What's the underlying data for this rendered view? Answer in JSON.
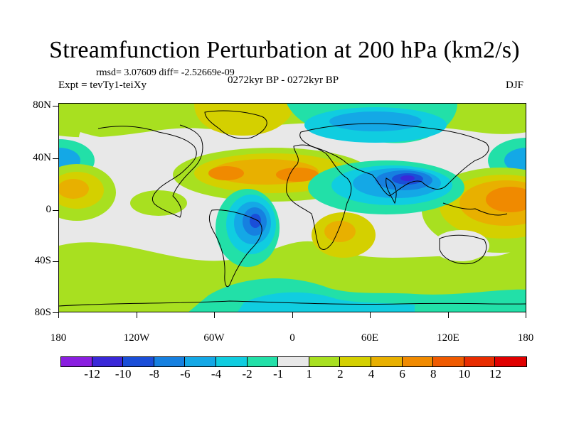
{
  "figure": {
    "title": "Streamfunction Perturbation at 200 hPa (km2/s)",
    "stats": "rmsd= 3.07609 diff= -2.52669e-09",
    "experiment": "Expt = tevTy1-teiXy",
    "period": "0272kyr BP - 0272kyr BP",
    "season": "DJF"
  },
  "axes": {
    "y_labels": [
      "80N",
      "40N",
      "0",
      "40S",
      "80S"
    ],
    "x_labels": [
      "180",
      "120W",
      "60W",
      "0",
      "60E",
      "120E",
      "180"
    ]
  },
  "colorbar": {
    "labels": [
      "-12",
      "-10",
      "-8",
      "-6",
      "-4",
      "-2",
      "-1",
      "1",
      "2",
      "4",
      "6",
      "8",
      "10",
      "12"
    ],
    "colors": [
      "#8a1ee0",
      "#3a28d8",
      "#1a4ed8",
      "#1680e0",
      "#14a8e6",
      "#10cde0",
      "#22e0a8",
      "#e8e8e8",
      "#a8e020",
      "#d4d000",
      "#e8b000",
      "#f08a00",
      "#ef5a00",
      "#e82c00",
      "#e00000"
    ]
  },
  "chart_data": {
    "type": "heatmap",
    "variable": "Streamfunction perturbation at 200 hPa",
    "units": "km2/s",
    "lon_range": [
      -180,
      180
    ],
    "lat_range": [
      -90,
      90
    ],
    "features": [
      {
        "region": "central Asia",
        "sign": "negative",
        "approx_min": -11,
        "center": [
          85,
          25
        ]
      },
      {
        "region": "South America / tropical Atlantic",
        "sign": "negative",
        "approx_min": -9,
        "center": [
          -35,
          -10
        ]
      },
      {
        "region": "northern Eurasia",
        "sign": "negative",
        "approx_min": -5,
        "center": [
          40,
          75
        ]
      },
      {
        "region": "North Pacific",
        "sign": "negative",
        "approx_min": -4,
        "center": [
          -160,
          40
        ]
      },
      {
        "region": "southern Ocean",
        "sign": "negative",
        "approx_min": -3,
        "center": [
          -30,
          -60
        ]
      },
      {
        "region": "western Pacific / Maritime Continent",
        "sign": "positive",
        "approx_max": 7,
        "center": [
          160,
          15
        ]
      },
      {
        "region": "North Atlantic / Europe",
        "sign": "positive",
        "approx_max": 6,
        "center": [
          -10,
          35
        ]
      },
      {
        "region": "eastern Pacific",
        "sign": "positive",
        "approx_max": 6,
        "center": [
          -175,
          15
        ]
      },
      {
        "region": "southern Africa / Indian Ocean",
        "sign": "positive",
        "approx_max": 4,
        "center": [
          40,
          -15
        ]
      },
      {
        "region": "Greenland",
        "sign": "positive",
        "approx_max": 3,
        "center": [
          -40,
          75
        ]
      }
    ]
  }
}
